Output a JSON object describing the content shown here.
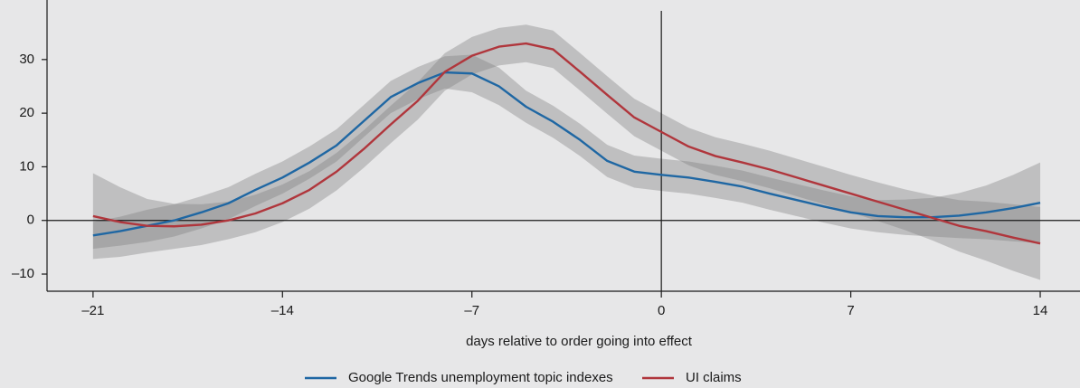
{
  "chart_data": {
    "type": "line",
    "x_label": "days relative to order going into effect",
    "x": [
      -21,
      -20,
      -19,
      -18,
      -17,
      -16,
      -15,
      -14,
      -13,
      -12,
      -11,
      -10,
      -9,
      -8,
      -7,
      -6,
      -5,
      -4,
      -3,
      -2,
      -1,
      0,
      1,
      2,
      3,
      4,
      5,
      6,
      7,
      8,
      9,
      10,
      11,
      12,
      13,
      14
    ],
    "series": [
      {
        "name": "Google Trends unemployment topic indexes",
        "color": "#1f67a3",
        "values": [
          -2.8,
          -2,
          -1,
          0,
          1.5,
          3.2,
          5.7,
          8,
          10.8,
          14,
          18.5,
          23,
          25.6,
          27.6,
          27.4,
          25,
          21.2,
          18.4,
          15,
          11.1,
          9.1,
          8.5,
          8,
          7.2,
          6.3,
          5,
          3.8,
          2.6,
          1.5,
          0.8,
          0.6,
          0.6,
          0.9,
          1.5,
          2.3,
          3.3
        ],
        "error": [
          2.5,
          2.7,
          3,
          3,
          3,
          3,
          3,
          3,
          3,
          3,
          3,
          3,
          3,
          3,
          3.5,
          3.5,
          3,
          3,
          3,
          3,
          3,
          3,
          3,
          3,
          3,
          3,
          3,
          3,
          3,
          3,
          3.3,
          3.6,
          4.2,
          5,
          6.2,
          7.5
        ]
      },
      {
        "name": "UI claims",
        "color": "#b0363c",
        "values": [
          0.8,
          -0.3,
          -1,
          -1.1,
          -0.8,
          0,
          1.3,
          3.2,
          5.7,
          9.1,
          13.3,
          17.9,
          22.3,
          27.7,
          30.7,
          32.4,
          33,
          31.9,
          27.7,
          23.4,
          19.2,
          16.5,
          13.8,
          12,
          10.8,
          9.5,
          8,
          6.5,
          5,
          3.5,
          2,
          0.5,
          -1,
          -2,
          -3.2,
          -4.3
        ],
        "error": [
          8,
          6.5,
          5,
          4.2,
          3.8,
          3.5,
          3.5,
          3.5,
          3.5,
          3.5,
          3.5,
          3.5,
          3.5,
          3.5,
          3.5,
          3.5,
          3.5,
          3.5,
          3.5,
          3.5,
          3.5,
          3.5,
          3.5,
          3.5,
          3.5,
          3.5,
          3.5,
          3.5,
          3.5,
          3.6,
          3.8,
          4.2,
          4.8,
          5.5,
          6.2,
          6.8
        ]
      }
    ],
    "band_color": "#7f7f7f",
    "xlim": [
      -22.7,
      15.47
    ],
    "ylim": [
      -13.2,
      41.1
    ],
    "xticks": [
      {
        "value": -21,
        "label": "–21"
      },
      {
        "value": -14,
        "label": "–14"
      },
      {
        "value": -7,
        "label": "–7"
      },
      0,
      7,
      14
    ],
    "yticks": [
      {
        "value": -10,
        "label": "–10"
      },
      0,
      10,
      20,
      30
    ],
    "legend": "bottom"
  }
}
